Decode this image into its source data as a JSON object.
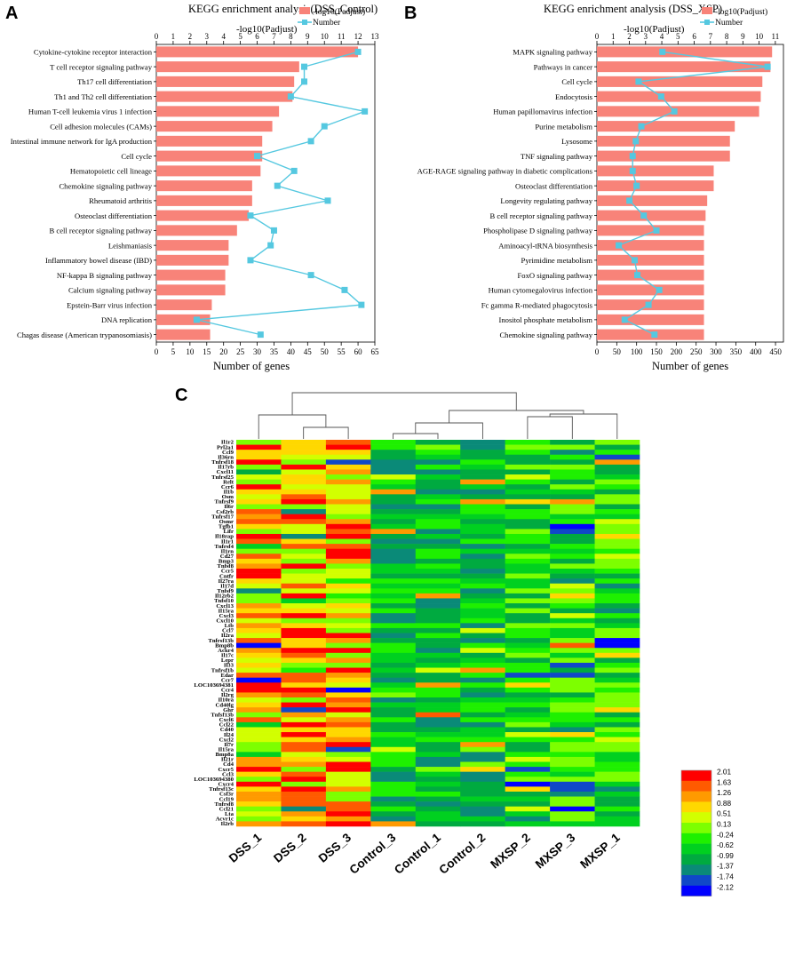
{
  "panels": {
    "A": {
      "panel_label": "A",
      "chart_data": {
        "type": "bar",
        "title": "KEGG enrichment analysis(DSS_Control)",
        "top_axis_label": "-log10(Padjust)",
        "bottom_axis_label": "Number of genes",
        "legend": [
          "-log10(Padjust)",
          "Number"
        ],
        "legend_placement": "top-right",
        "bar_color": "#f88379",
        "line_color": "#55c8e0",
        "top_range": [
          0,
          13
        ],
        "top_ticks": [
          "0",
          "1",
          "2",
          "3",
          "4",
          "5",
          "6",
          "7",
          "8",
          "9",
          "10",
          "11",
          "12",
          "13"
        ],
        "bottom_range": [
          0,
          65
        ],
        "bottom_ticks": [
          "0",
          "5",
          "10",
          "15",
          "20",
          "25",
          "30",
          "35",
          "40",
          "45",
          "50",
          "55",
          "60",
          "65"
        ],
        "categories": [
          "Cytokine-cytokine receptor interaction",
          "T cell receptor signaling pathway",
          "Th17 cell differentiation",
          "Th1 and Th2 cell differentiation",
          "Human T-cell leukemia virus 1 infection",
          "Cell adhesion molecules (CAMs)",
          "Intestinal immune network for IgA production",
          "Cell cycle",
          "Hematopoietic cell lineage",
          "Chemokine signaling pathway",
          "Rheumatoid arthritis",
          "Osteoclast differentiation",
          "B cell receptor signaling pathway",
          "Leishmaniasis",
          "Inflammatory bowel disease (IBD)",
          "NF-kappa B signaling pathway",
          "Calcium signaling pathway",
          "Epstein-Barr virus infection",
          "DNA replication",
          "Chagas disease (American trypanosomiasis)"
        ],
        "bar_values": [
          12.0,
          8.5,
          8.2,
          8.1,
          7.3,
          6.9,
          6.3,
          6.3,
          6.2,
          5.7,
          5.7,
          5.5,
          4.8,
          4.3,
          4.3,
          4.1,
          4.1,
          3.3,
          3.2,
          3.2
        ],
        "line_values": [
          60,
          44,
          44,
          40,
          62,
          50,
          46,
          30,
          41,
          36,
          51,
          28,
          35,
          34,
          28,
          46,
          56,
          61,
          12,
          31
        ]
      }
    },
    "B": {
      "panel_label": "B",
      "chart_data": {
        "type": "bar",
        "title": "KEGG enrichment analysis (DSS_XSP)",
        "top_axis_label": "-log10(Padjust)",
        "bottom_axis_label": "Number of genes",
        "legend": [
          "-log10(Padjust)",
          "Number"
        ],
        "legend_placement": "top-right",
        "bar_color": "#f88379",
        "line_color": "#55c8e0",
        "top_range": [
          0,
          11.5
        ],
        "top_ticks": [
          "0",
          "1",
          "2",
          "3",
          "4",
          "5",
          "6",
          "7",
          "8",
          "9",
          "10",
          "11"
        ],
        "bottom_range": [
          0,
          470
        ],
        "bottom_ticks": [
          "0",
          "50",
          "100",
          "150",
          "200",
          "250",
          "300",
          "350",
          "400",
          "450"
        ],
        "categories": [
          "MAPK signaling pathway",
          "Pathways in cancer",
          "Cell cycle",
          "Endocytosis",
          "Human papillomavirus infection",
          "Purine metabolism",
          "Lysosome",
          "TNF signaling pathway",
          "AGE-RAGE signaling pathway in diabetic complications",
          "Osteoclast differentiation",
          "Longevity regulating pathway",
          "B cell receptor signaling pathway",
          "Phospholipase D signaling pathway",
          "Aminoacyl-tRNA biosynthesis",
          "Pyrimidine metabolism",
          "FoxO signaling pathway",
          "Human cytomegalovirus infection",
          "Fc gamma R-mediated phagocytosis",
          "Inositol phosphate metabolism",
          "Chemokine signaling pathway"
        ],
        "bar_values": [
          10.8,
          10.7,
          10.2,
          10.1,
          10.0,
          8.5,
          8.2,
          8.2,
          7.2,
          7.2,
          6.8,
          6.7,
          6.6,
          6.6,
          6.6,
          6.6,
          6.6,
          6.6,
          6.6,
          6.6
        ],
        "line_values": [
          165,
          430,
          105,
          162,
          195,
          112,
          98,
          90,
          90,
          100,
          82,
          118,
          150,
          55,
          95,
          102,
          157,
          130,
          70,
          145
        ]
      }
    },
    "C": {
      "panel_label": "C",
      "chart_data": {
        "type": "heatmap",
        "columns": [
          "DSS_1",
          "DSS_2",
          "DSS_3",
          "Control_3",
          "Control_1",
          "Control_2",
          "MXSP_2",
          "MXSP_3",
          "MXSP_1"
        ],
        "rows": [
          "Il1r2",
          "Prl2a1",
          "Ccl9",
          "Il36rn",
          "Tnfrsf18",
          "Il17rb",
          "Cxcl11",
          "Tnfrsf25",
          "Relt",
          "Ccr6",
          "Il1b",
          "Osm",
          "Tnfrsf9",
          "Il6r",
          "Csf2rb",
          "Tnfrsf17",
          "Osmr",
          "Tgfb1",
          "Lifr",
          "Il18rap",
          "Il1r1",
          "Tnfrsf4",
          "Il1rn",
          "Cd27",
          "Bmp3",
          "Tnfsf8",
          "Ccr5",
          "Cntfr",
          "Il27ra",
          "Il17d",
          "Tnfsf9",
          "Il12rb2",
          "Tnfsf10",
          "Cxcl13",
          "Il15ra",
          "Cxcl3",
          "Cxcl10",
          "Ltb",
          "Ccl7",
          "Il2ra",
          "Tnfrsf13b",
          "Bmp8b",
          "Ackr4",
          "Il17c",
          "Lepr",
          "Il33",
          "Tnfrsf1b",
          "Edar",
          "Ccr7",
          "LOC103694381",
          "Ccr4",
          "Il2rg",
          "Il10ra",
          "Cd40lg",
          "Ghr",
          "Tnfsf13b",
          "Cxcl6",
          "Ccl22",
          "Cd40",
          "Il24",
          "Cxcl2",
          "Il7r",
          "Il15ra",
          "Bmp8a",
          "Il21r",
          "Cd4",
          "Cxcr5",
          "Ccl3",
          "LOC103694380",
          "Cxcr4",
          "Tnfrsf13c",
          "Csf3r",
          "Ccl19",
          "Tnfrsf8",
          "Ccl21",
          "Lta",
          "Acvr1c",
          "Il2rb"
        ],
        "color_scale": [
          {
            "value": "2.01",
            "color": "#ff0000"
          },
          {
            "value": "1.63",
            "color": "#ff5a00"
          },
          {
            "value": "1.26",
            "color": "#ff9a00"
          },
          {
            "value": "0.88",
            "color": "#ffd800"
          },
          {
            "value": "0.51",
            "color": "#d2ff00"
          },
          {
            "value": "0.13",
            "color": "#7dff00"
          },
          {
            "value": "-0.24",
            "color": "#1ef000"
          },
          {
            "value": "-0.62",
            "color": "#00d020"
          },
          {
            "value": "-0.99",
            "color": "#00aa40"
          },
          {
            "value": "-1.37",
            "color": "#0a8a78"
          },
          {
            "value": "-1.74",
            "color": "#1048c8"
          },
          {
            "value": "-2.12",
            "color": "#0000ff"
          }
        ]
      }
    }
  }
}
